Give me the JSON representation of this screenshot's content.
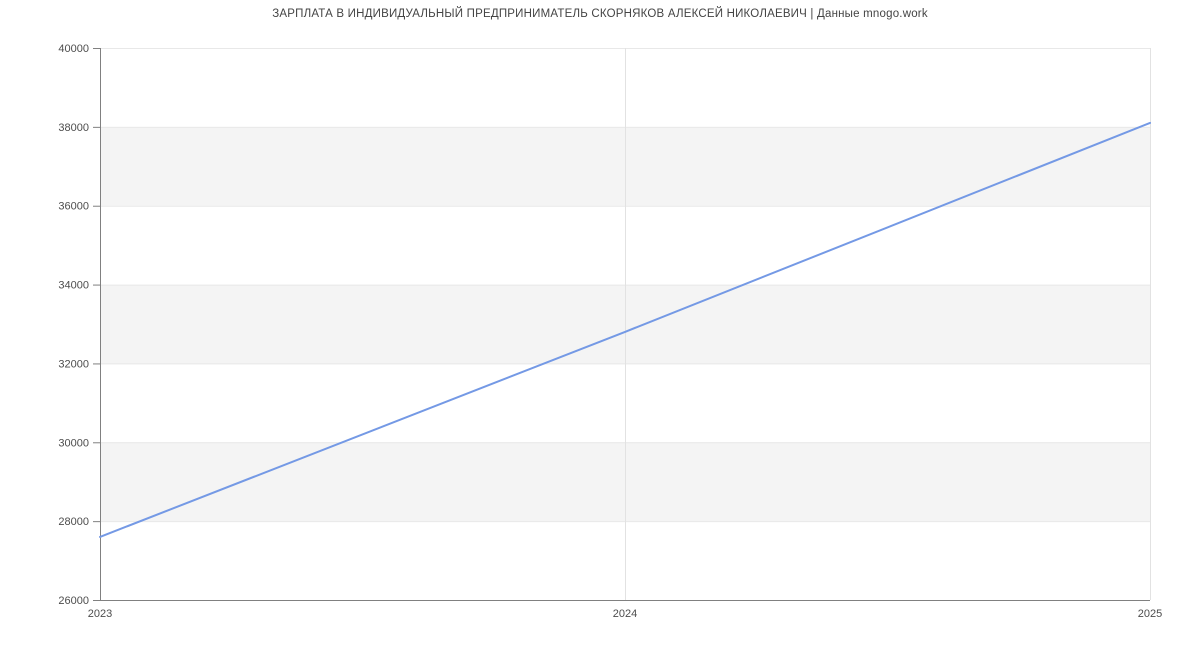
{
  "chart_data": {
    "type": "line",
    "title": "ЗАРПЛАТА В ИНДИВИДУАЛЬНЫЙ ПРЕДПРИНИМАТЕЛЬ СКОРНЯКОВ АЛЕКСЕЙ НИКОЛАЕВИЧ | Данные mnogo.work",
    "categories": [
      "2023",
      "2024",
      "2025"
    ],
    "values": [
      27600,
      32800,
      38100
    ],
    "xlabel": "",
    "ylabel": "",
    "ylim": [
      26000,
      40000
    ],
    "yticks": [
      26000,
      28000,
      30000,
      32000,
      34000,
      36000,
      38000,
      40000
    ],
    "grid": true,
    "legend": false,
    "band_pattern": "alternating horizontal bands between y ticks, shaded rows 28000-30000, 32000-34000, 36000-38000",
    "colors": {
      "line": "#7499e5",
      "band": "#f4f4f4",
      "grid_h": "#e8e8e8",
      "grid_v": "#e2e2e2",
      "axis": "#808080",
      "tick_label": "#4d4d4d",
      "title": "#444444",
      "background": "#ffffff"
    }
  }
}
